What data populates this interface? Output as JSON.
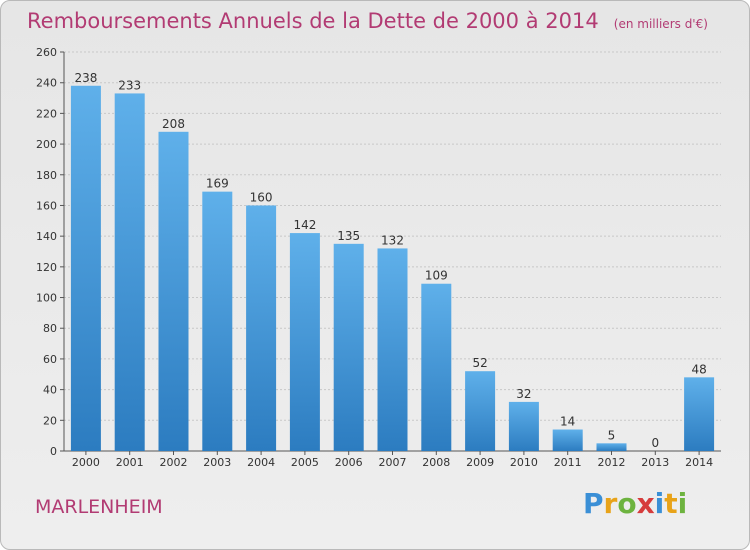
{
  "header": {
    "title": "Remboursements Annuels de la Dette de 2000 à 2014",
    "subtitle": "(en milliers d'€)"
  },
  "footer": {
    "commune": "MARLENHEIM",
    "logo_text": "Proxiti"
  },
  "colors": {
    "title": "#b23b73",
    "bar_light": "#5fb0ea",
    "bar_dark": "#2c7cc0"
  },
  "chart_data": {
    "type": "bar",
    "title": "Remboursements Annuels de la Dette de 2000 à 2014",
    "subtitle": "(en milliers d'€)",
    "categories": [
      "2000",
      "2001",
      "2002",
      "2003",
      "2004",
      "2005",
      "2006",
      "2007",
      "2008",
      "2009",
      "2010",
      "2011",
      "2012",
      "2013",
      "2014"
    ],
    "values": [
      238,
      233,
      208,
      169,
      160,
      142,
      135,
      132,
      109,
      52,
      32,
      14,
      5,
      0,
      48
    ],
    "ylim": [
      0,
      260
    ],
    "yticks": [
      0,
      20,
      40,
      60,
      80,
      100,
      120,
      140,
      160,
      180,
      200,
      220,
      240,
      260
    ],
    "grid": true,
    "legend": "none"
  }
}
